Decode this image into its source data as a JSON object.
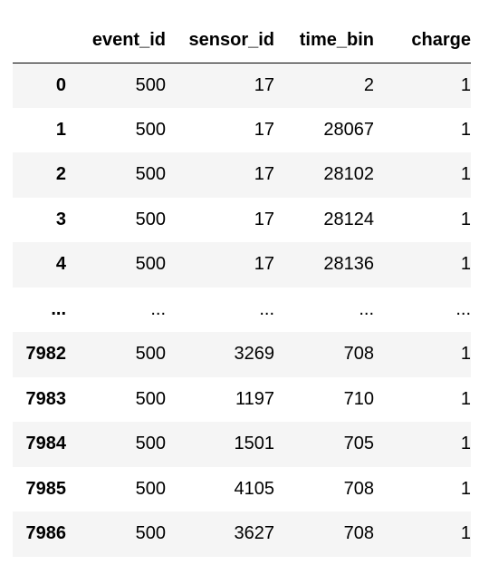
{
  "table": {
    "columns": [
      "",
      "event_id",
      "sensor_id",
      "time_bin",
      "charge"
    ],
    "rows": [
      {
        "index": "0",
        "event_id": "500",
        "sensor_id": "17",
        "time_bin": "2",
        "charge": "1"
      },
      {
        "index": "1",
        "event_id": "500",
        "sensor_id": "17",
        "time_bin": "28067",
        "charge": "1"
      },
      {
        "index": "2",
        "event_id": "500",
        "sensor_id": "17",
        "time_bin": "28102",
        "charge": "1"
      },
      {
        "index": "3",
        "event_id": "500",
        "sensor_id": "17",
        "time_bin": "28124",
        "charge": "1"
      },
      {
        "index": "4",
        "event_id": "500",
        "sensor_id": "17",
        "time_bin": "28136",
        "charge": "1"
      },
      {
        "index": "...",
        "event_id": "...",
        "sensor_id": "...",
        "time_bin": "...",
        "charge": "..."
      },
      {
        "index": "7982",
        "event_id": "500",
        "sensor_id": "3269",
        "time_bin": "708",
        "charge": "1"
      },
      {
        "index": "7983",
        "event_id": "500",
        "sensor_id": "1197",
        "time_bin": "710",
        "charge": "1"
      },
      {
        "index": "7984",
        "event_id": "500",
        "sensor_id": "1501",
        "time_bin": "705",
        "charge": "1"
      },
      {
        "index": "7985",
        "event_id": "500",
        "sensor_id": "4105",
        "time_bin": "708",
        "charge": "1"
      },
      {
        "index": "7986",
        "event_id": "500",
        "sensor_id": "3627",
        "time_bin": "708",
        "charge": "1"
      }
    ]
  }
}
